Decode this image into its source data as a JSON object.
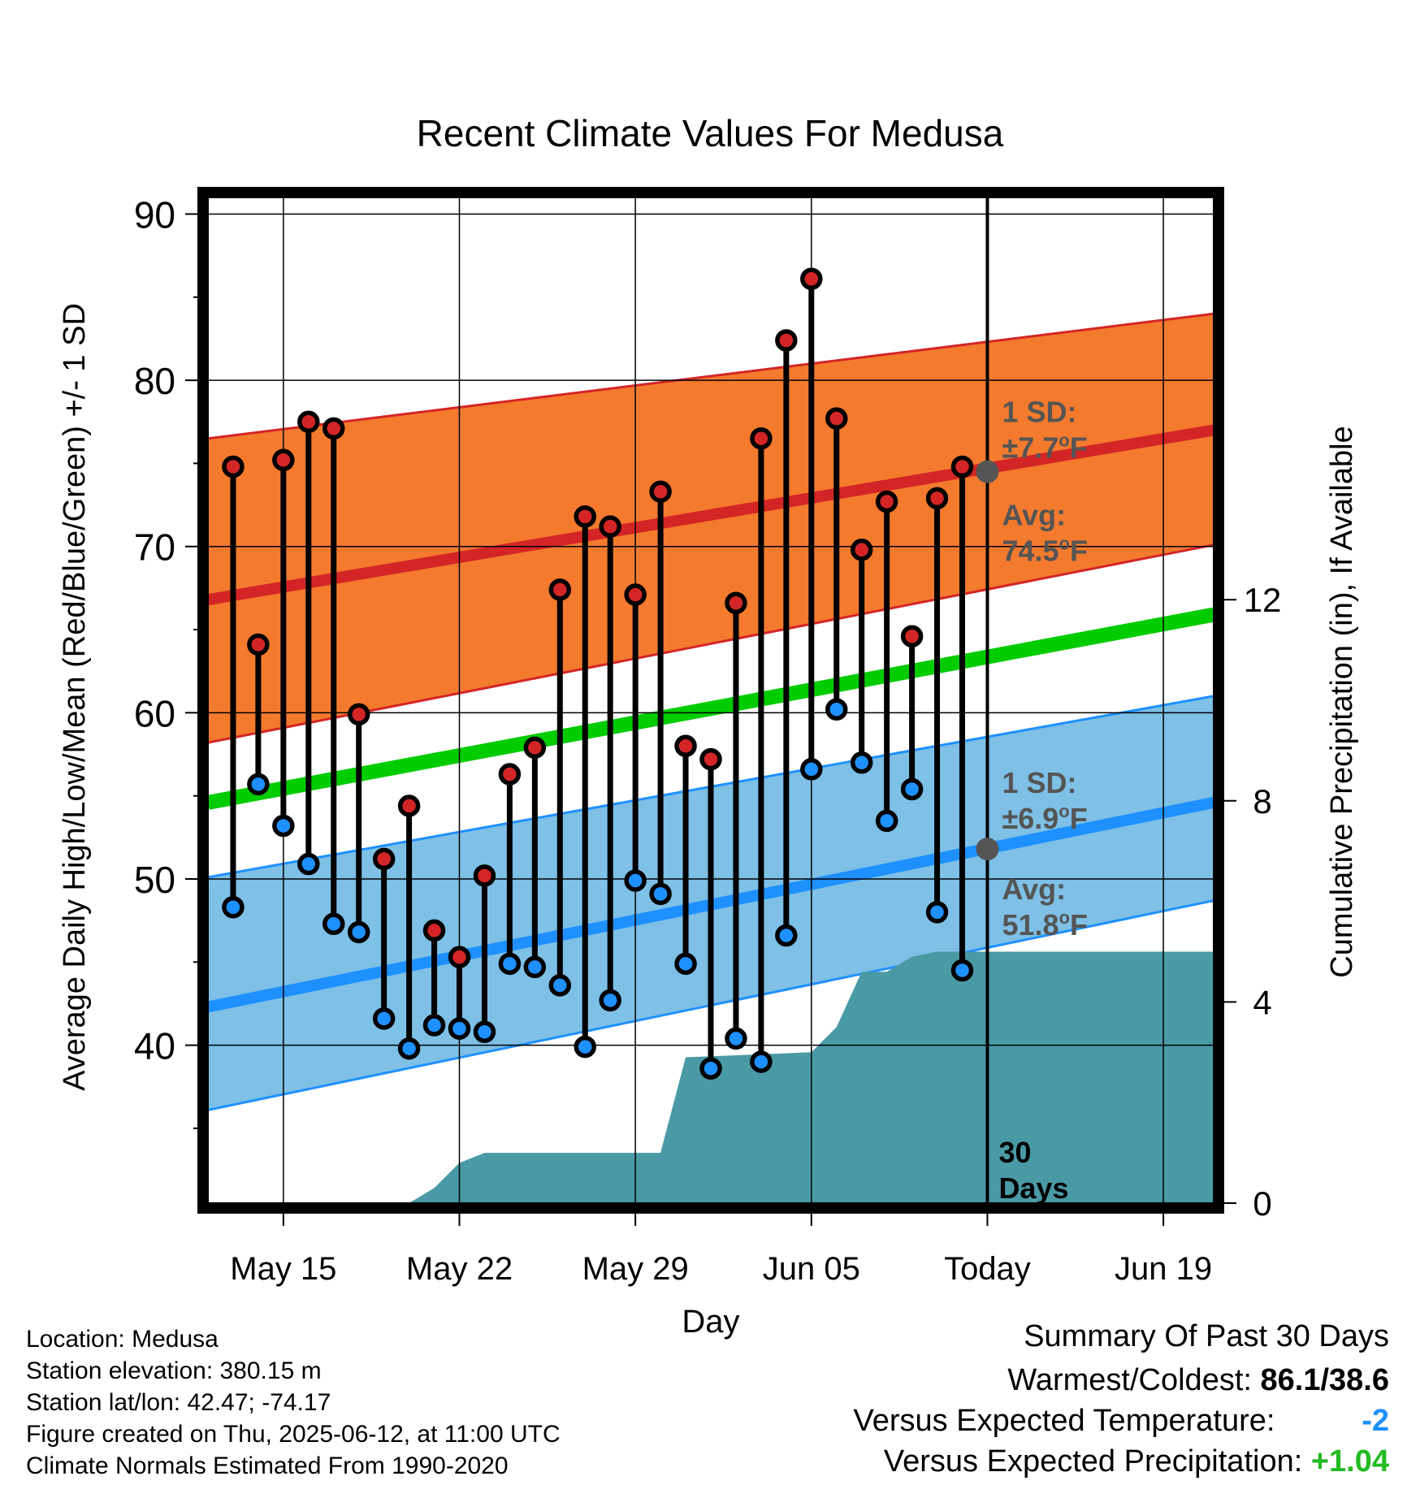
{
  "chart_data": {
    "type": "line",
    "title": "Recent Climate Values For Medusa",
    "xlabel": "Day",
    "ylabel": "Average Daily High/Low/Mean (Red/Blue/Green) +/- 1 SD",
    "ylabel_right": "Cumulative Precipitation (in), If Available",
    "ylim": [
      30.5,
      91
    ],
    "y_ticks": [
      40,
      50,
      60,
      70,
      80,
      90
    ],
    "y2lim": [
      0,
      20
    ],
    "y2_ticks": [
      0,
      4,
      8,
      12
    ],
    "x_ticks": [
      {
        "date": "2025-05-15",
        "label": "May 15"
      },
      {
        "date": "2025-05-22",
        "label": "May 22"
      },
      {
        "date": "2025-05-29",
        "label": "May 29"
      },
      {
        "date": "2025-06-05",
        "label": "Jun 05"
      },
      {
        "date": "2025-06-12",
        "label": "Today"
      },
      {
        "date": "2025-06-19",
        "label": "Jun 19"
      }
    ],
    "xlim": [
      "2025-05-12",
      "2025-06-21"
    ],
    "grid": true,
    "today": "2025-06-12",
    "today_label": [
      "30",
      "Days"
    ],
    "colors": {
      "high_band": "#f47a2e",
      "high_avg": "#d42526",
      "low_band": "#7ec0e6",
      "low_avg": "#1e90ff",
      "mean": "#00cc00",
      "precip": "#4a9aa5",
      "high_dot": "#d42526",
      "low_dot": "#1e90ff",
      "marker": "#555555",
      "annot": "#555555"
    },
    "normals": {
      "dates": [
        "2025-05-12",
        "2025-06-21"
      ],
      "high_mean": [
        66.8,
        77.0
      ],
      "high_upper": [
        76.5,
        84.0
      ],
      "high_lower": [
        58.2,
        70.1
      ],
      "low_mean": [
        42.3,
        54.6
      ],
      "low_upper": [
        50.1,
        61.0
      ],
      "low_lower": [
        36.1,
        48.7
      ],
      "mean": [
        54.6,
        65.9
      ]
    },
    "annotations": {
      "high": {
        "sd_label": "1 SD:",
        "sd_value": "±7.7",
        "avg_label": "Avg:",
        "avg_value": "74.5",
        "unit": "F",
        "avg_marker": 74.5
      },
      "low": {
        "sd_label": "1 SD:",
        "sd_value": "±6.9",
        "avg_label": "Avg:",
        "avg_value": "51.8",
        "unit": "F",
        "avg_marker": 51.8
      }
    },
    "daily": {
      "dates": [
        "2025-05-13",
        "2025-05-14",
        "2025-05-15",
        "2025-05-16",
        "2025-05-17",
        "2025-05-18",
        "2025-05-19",
        "2025-05-20",
        "2025-05-21",
        "2025-05-22",
        "2025-05-23",
        "2025-05-24",
        "2025-05-25",
        "2025-05-26",
        "2025-05-27",
        "2025-05-28",
        "2025-05-29",
        "2025-05-30",
        "2025-05-31",
        "2025-06-01",
        "2025-06-02",
        "2025-06-03",
        "2025-06-04",
        "2025-06-05",
        "2025-06-06",
        "2025-06-07",
        "2025-06-08",
        "2025-06-09",
        "2025-06-10",
        "2025-06-11"
      ],
      "high": [
        74.8,
        64.1,
        75.2,
        77.5,
        77.1,
        59.9,
        51.2,
        54.4,
        46.9,
        45.3,
        50.2,
        56.3,
        57.9,
        67.4,
        71.8,
        71.2,
        67.1,
        73.3,
        58.0,
        57.2,
        66.6,
        76.5,
        82.4,
        86.1,
        77.7,
        69.8,
        72.7,
        64.6,
        72.9,
        74.8
      ],
      "low": [
        48.3,
        55.7,
        53.2,
        50.9,
        47.3,
        46.8,
        41.6,
        39.8,
        41.2,
        41.0,
        40.8,
        44.9,
        44.7,
        43.6,
        39.9,
        42.7,
        49.9,
        49.1,
        44.9,
        38.6,
        40.4,
        39.0,
        46.6,
        56.6,
        60.2,
        57.0,
        53.5,
        55.4,
        48.0,
        44.5
      ]
    },
    "precipitation": {
      "series": [
        [
          "2025-05-12",
          0
        ],
        [
          "2025-05-20",
          0
        ],
        [
          "2025-05-21",
          0.3
        ],
        [
          "2025-05-22",
          0.8
        ],
        [
          "2025-05-23",
          1.0
        ],
        [
          "2025-05-30",
          1.0
        ],
        [
          "2025-05-31",
          2.9
        ],
        [
          "2025-06-05",
          3.0
        ],
        [
          "2025-06-06",
          3.5
        ],
        [
          "2025-06-07",
          4.6
        ],
        [
          "2025-06-08",
          4.6
        ],
        [
          "2025-06-09",
          4.9
        ],
        [
          "2025-06-10",
          5.0
        ],
        [
          "2025-06-21",
          5.0
        ]
      ]
    }
  },
  "footer": {
    "location": "Location: Medusa",
    "elevation": "Station elevation: 380.15 m",
    "latlon": "Station lat/lon: 42.47; -74.17",
    "created": "Figure created on Thu, 2025-06-12, at 11:00 UTC",
    "normals": "Climate Normals Estimated From 1990-2020"
  },
  "summary": {
    "title": "Summary Of Past 30 Days",
    "warm_cold_label": "Warmest/Coldest:",
    "warm_cold_value": "86.1/38.6",
    "temp_label": "Versus Expected Temperature:",
    "temp_value": "-2",
    "temp_color": "#1e90ff",
    "precip_label": "Versus Expected Precipitation:",
    "precip_value": "+1.04",
    "precip_color": "#22bb22"
  }
}
